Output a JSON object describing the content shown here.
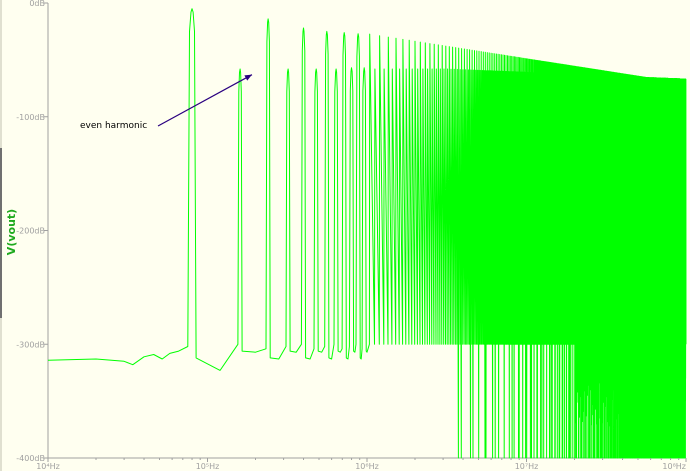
{
  "chart_data": {
    "type": "line",
    "ylabel": "V(vout)",
    "xscale": "log",
    "x_range_hz": [
      10000,
      100000000
    ],
    "ylim_db": [
      -400,
      0
    ],
    "x_ticks": [
      {
        "value": 10000,
        "label": "10⁴Hz"
      },
      {
        "value": 100000,
        "label": "10⁵Hz"
      },
      {
        "value": 1000000,
        "label": "10⁶Hz"
      },
      {
        "value": 10000000,
        "label": "10⁷Hz"
      },
      {
        "value": 100000000,
        "label": "10⁸Hz"
      }
    ],
    "y_ticks": [
      {
        "value": 0,
        "label": "0dB"
      },
      {
        "value": -100,
        "label": "-100dB"
      },
      {
        "value": -200,
        "label": "-200dB"
      },
      {
        "value": -300,
        "label": "-300dB"
      },
      {
        "value": -400,
        "label": "-400dB"
      }
    ],
    "grid": false,
    "noise_floor_db": -314,
    "fundamental_hz": 80000,
    "fundamental_db": -5,
    "harmonics_db": [
      -5,
      -58,
      -14,
      -58,
      -22,
      -58,
      -25,
      -58,
      -26,
      -57,
      -27,
      -57
    ],
    "series_color": "#00ff00",
    "annotation": {
      "text": "even harmonic",
      "arrow_target_hz": 190000,
      "arrow_target_db": -63
    }
  },
  "colors": {
    "background": "#fffff0",
    "trace": "#00ff00",
    "axis": "#a0a0a0",
    "arrow": "#2a0080",
    "ylabel": "#1faa1f"
  }
}
